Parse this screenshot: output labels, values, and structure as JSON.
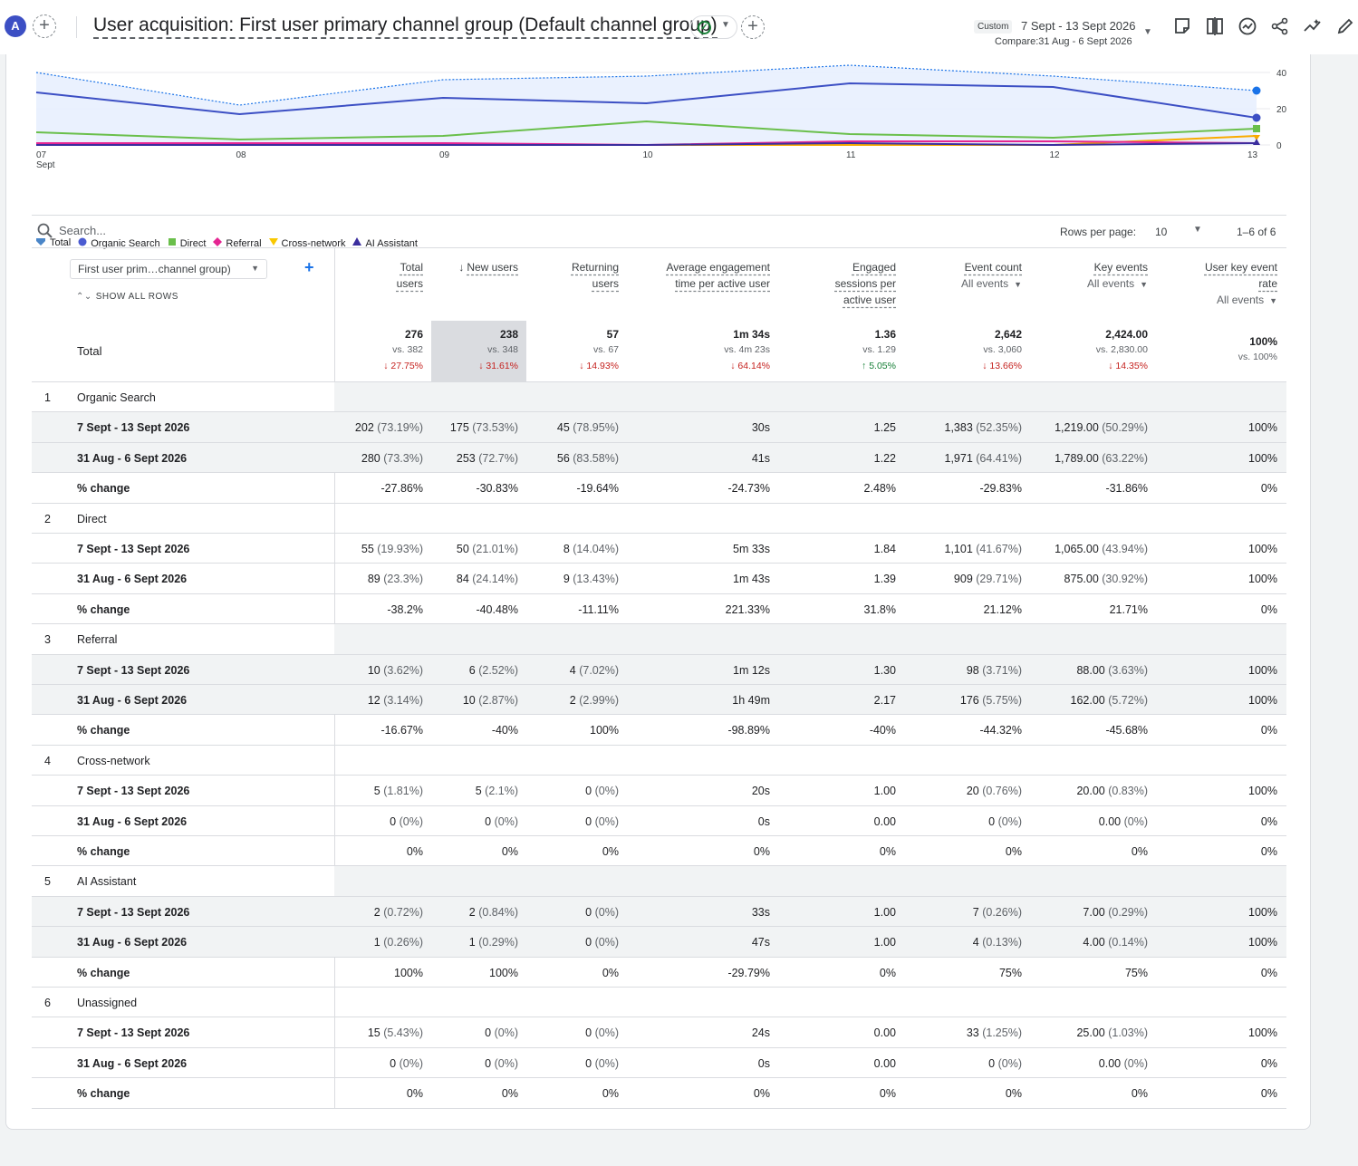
{
  "header": {
    "avatar": "A",
    "add_comparison": "+",
    "title": "User acquisition: First user primary channel group (Default channel group)",
    "add_report": "+",
    "custom_chip": "Custom",
    "date_range": "7 Sept - 13 Sept 2026",
    "compare_range": "Compare:31 Aug - 6 Sept 2026",
    "tools": [
      "annotation-icon",
      "compare-icon",
      "insights-icon",
      "share-icon",
      "trend-icon",
      "edit-icon"
    ]
  },
  "chart": {
    "x_labels": [
      "07",
      "08",
      "09",
      "10",
      "11",
      "12",
      "13"
    ],
    "x_sub": "Sept",
    "y_ticks": [
      "40",
      "20",
      "0"
    ],
    "series": {
      "total_prev": [
        40,
        22,
        36,
        38,
        44,
        38,
        30
      ],
      "organic": [
        29,
        17,
        26,
        23,
        34,
        32,
        15
      ],
      "direct": [
        7,
        3,
        5,
        13,
        6,
        4,
        9
      ],
      "referral": [
        1,
        1,
        1,
        0,
        2,
        2,
        1
      ],
      "cross": [
        0,
        0,
        0,
        0,
        0,
        0,
        5
      ],
      "ai": [
        0,
        0,
        0,
        0,
        1,
        0,
        1
      ]
    },
    "colors": {
      "total": "#1a73e8",
      "organic": "#3c4fc4",
      "direct": "#6abf4b",
      "referral": "#e52592",
      "cross": "#f9ab00",
      "ai": "#3b2e9e"
    }
  },
  "legend": [
    {
      "label": "Total",
      "color": "#4a86c8",
      "shape": "pin"
    },
    {
      "label": "Organic Search",
      "color": "#4a5bd1",
      "shape": "circle"
    },
    {
      "label": "Direct",
      "color": "#6abf4b",
      "shape": "square"
    },
    {
      "label": "Referral",
      "color": "#e52592",
      "shape": "diamond"
    },
    {
      "label": "Cross-network",
      "color": "#f9c800",
      "shape": "tri-down"
    },
    {
      "label": "AI Assistant",
      "color": "#3b2e9e",
      "shape": "tri-up"
    }
  ],
  "toolbar": {
    "search_placeholder": "Search...",
    "rows_per_page_label": "Rows per page:",
    "rows_per_page": "10",
    "pager": "1–6 of 6"
  },
  "table": {
    "dimension": "First user prim…channel group)",
    "show_all_rows": "SHOW ALL ROWS",
    "columns": [
      {
        "l1": "Total",
        "l2": "users"
      },
      {
        "l1": "New users",
        "l2": "",
        "sorted": true
      },
      {
        "l1": "Returning",
        "l2": "users"
      },
      {
        "l1": "Average engagement",
        "l2": "time per active user"
      },
      {
        "l1": "Engaged",
        "l2": "sessions per",
        "l3": "active user"
      },
      {
        "l1": "Event count",
        "sub": "All events"
      },
      {
        "l1": "Key events",
        "sub": "All events"
      },
      {
        "l1": "User key event",
        "l2": "rate",
        "sub": "All events"
      }
    ],
    "total": {
      "label": "Total",
      "cells": [
        {
          "v": "276",
          "vs": "vs. 382",
          "ch": "↓ 27.75%",
          "dir": "down"
        },
        {
          "v": "238",
          "vs": "vs. 348",
          "ch": "↓ 31.61%",
          "dir": "down"
        },
        {
          "v": "57",
          "vs": "vs. 67",
          "ch": "↓ 14.93%",
          "dir": "down"
        },
        {
          "v": "1m 34s",
          "vs": "vs. 4m 23s",
          "ch": "↓ 64.14%",
          "dir": "down"
        },
        {
          "v": "1.36",
          "vs": "vs. 1.29",
          "ch": "↑ 5.05%",
          "dir": "up"
        },
        {
          "v": "2,642",
          "vs": "vs. 3,060",
          "ch": "↓ 13.66%",
          "dir": "down"
        },
        {
          "v": "2,424.00",
          "vs": "vs. 2,830.00",
          "ch": "↓ 14.35%",
          "dir": "down"
        },
        {
          "v": "100%",
          "vs": "vs. 100%",
          "ch": "",
          "dir": ""
        }
      ]
    },
    "groups": [
      {
        "idx": "1",
        "name": "Organic Search",
        "rows": [
          {
            "label": "7 Sept - 13 Sept 2026",
            "cells": [
              [
                "202",
                "(73.19%)"
              ],
              [
                "175",
                "(73.53%)"
              ],
              [
                "45",
                "(78.95%)"
              ],
              [
                "30s",
                ""
              ],
              [
                "1.25",
                ""
              ],
              [
                "1,383",
                "(52.35%)"
              ],
              [
                "1,219.00",
                "(50.29%)"
              ],
              [
                "100%",
                ""
              ]
            ]
          },
          {
            "label": "31 Aug - 6 Sept 2026",
            "cells": [
              [
                "280",
                "(73.3%)"
              ],
              [
                "253",
                "(72.7%)"
              ],
              [
                "56",
                "(83.58%)"
              ],
              [
                "41s",
                ""
              ],
              [
                "1.22",
                ""
              ],
              [
                "1,971",
                "(64.41%)"
              ],
              [
                "1,789.00",
                "(63.22%)"
              ],
              [
                "100%",
                ""
              ]
            ]
          },
          {
            "label": "% change",
            "cells": [
              [
                "-27.86%",
                ""
              ],
              [
                "-30.83%",
                ""
              ],
              [
                "-19.64%",
                ""
              ],
              [
                "-24.73%",
                ""
              ],
              [
                "2.48%",
                ""
              ],
              [
                "-29.83%",
                ""
              ],
              [
                "-31.86%",
                ""
              ],
              [
                "0%",
                ""
              ]
            ]
          }
        ]
      },
      {
        "idx": "2",
        "name": "Direct",
        "rows": [
          {
            "label": "7 Sept - 13 Sept 2026",
            "cells": [
              [
                "55",
                "(19.93%)"
              ],
              [
                "50",
                "(21.01%)"
              ],
              [
                "8",
                "(14.04%)"
              ],
              [
                "5m 33s",
                ""
              ],
              [
                "1.84",
                ""
              ],
              [
                "1,101",
                "(41.67%)"
              ],
              [
                "1,065.00",
                "(43.94%)"
              ],
              [
                "100%",
                ""
              ]
            ]
          },
          {
            "label": "31 Aug - 6 Sept 2026",
            "cells": [
              [
                "89",
                "(23.3%)"
              ],
              [
                "84",
                "(24.14%)"
              ],
              [
                "9",
                "(13.43%)"
              ],
              [
                "1m 43s",
                ""
              ],
              [
                "1.39",
                ""
              ],
              [
                "909",
                "(29.71%)"
              ],
              [
                "875.00",
                "(30.92%)"
              ],
              [
                "100%",
                ""
              ]
            ]
          },
          {
            "label": "% change",
            "cells": [
              [
                "-38.2%",
                ""
              ],
              [
                "-40.48%",
                ""
              ],
              [
                "-11.11%",
                ""
              ],
              [
                "221.33%",
                ""
              ],
              [
                "31.8%",
                ""
              ],
              [
                "21.12%",
                ""
              ],
              [
                "21.71%",
                ""
              ],
              [
                "0%",
                ""
              ]
            ]
          }
        ]
      },
      {
        "idx": "3",
        "name": "Referral",
        "rows": [
          {
            "label": "7 Sept - 13 Sept 2026",
            "cells": [
              [
                "10",
                "(3.62%)"
              ],
              [
                "6",
                "(2.52%)"
              ],
              [
                "4",
                "(7.02%)"
              ],
              [
                "1m 12s",
                ""
              ],
              [
                "1.30",
                ""
              ],
              [
                "98",
                "(3.71%)"
              ],
              [
                "88.00",
                "(3.63%)"
              ],
              [
                "100%",
                ""
              ]
            ]
          },
          {
            "label": "31 Aug - 6 Sept 2026",
            "cells": [
              [
                "12",
                "(3.14%)"
              ],
              [
                "10",
                "(2.87%)"
              ],
              [
                "2",
                "(2.99%)"
              ],
              [
                "1h 49m",
                ""
              ],
              [
                "2.17",
                ""
              ],
              [
                "176",
                "(5.75%)"
              ],
              [
                "162.00",
                "(5.72%)"
              ],
              [
                "100%",
                ""
              ]
            ]
          },
          {
            "label": "% change",
            "cells": [
              [
                "-16.67%",
                ""
              ],
              [
                "-40%",
                ""
              ],
              [
                "100%",
                ""
              ],
              [
                "-98.89%",
                ""
              ],
              [
                "-40%",
                ""
              ],
              [
                "-44.32%",
                ""
              ],
              [
                "-45.68%",
                ""
              ],
              [
                "0%",
                ""
              ]
            ]
          }
        ]
      },
      {
        "idx": "4",
        "name": "Cross-network",
        "rows": [
          {
            "label": "7 Sept - 13 Sept 2026",
            "cells": [
              [
                "5",
                "(1.81%)"
              ],
              [
                "5",
                "(2.1%)"
              ],
              [
                "0",
                "(0%)"
              ],
              [
                "20s",
                ""
              ],
              [
                "1.00",
                ""
              ],
              [
                "20",
                "(0.76%)"
              ],
              [
                "20.00",
                "(0.83%)"
              ],
              [
                "100%",
                ""
              ]
            ]
          },
          {
            "label": "31 Aug - 6 Sept 2026",
            "cells": [
              [
                "0",
                "(0%)"
              ],
              [
                "0",
                "(0%)"
              ],
              [
                "0",
                "(0%)"
              ],
              [
                "0s",
                ""
              ],
              [
                "0.00",
                ""
              ],
              [
                "0",
                "(0%)"
              ],
              [
                "0.00",
                "(0%)"
              ],
              [
                "0%",
                ""
              ]
            ]
          },
          {
            "label": "% change",
            "cells": [
              [
                "0%",
                ""
              ],
              [
                "0%",
                ""
              ],
              [
                "0%",
                ""
              ],
              [
                "0%",
                ""
              ],
              [
                "0%",
                ""
              ],
              [
                "0%",
                ""
              ],
              [
                "0%",
                ""
              ],
              [
                "0%",
                ""
              ]
            ]
          }
        ]
      },
      {
        "idx": "5",
        "name": "AI Assistant",
        "rows": [
          {
            "label": "7 Sept - 13 Sept 2026",
            "cells": [
              [
                "2",
                "(0.72%)"
              ],
              [
                "2",
                "(0.84%)"
              ],
              [
                "0",
                "(0%)"
              ],
              [
                "33s",
                ""
              ],
              [
                "1.00",
                ""
              ],
              [
                "7",
                "(0.26%)"
              ],
              [
                "7.00",
                "(0.29%)"
              ],
              [
                "100%",
                ""
              ]
            ]
          },
          {
            "label": "31 Aug - 6 Sept 2026",
            "cells": [
              [
                "1",
                "(0.26%)"
              ],
              [
                "1",
                "(0.29%)"
              ],
              [
                "0",
                "(0%)"
              ],
              [
                "47s",
                ""
              ],
              [
                "1.00",
                ""
              ],
              [
                "4",
                "(0.13%)"
              ],
              [
                "4.00",
                "(0.14%)"
              ],
              [
                "100%",
                ""
              ]
            ]
          },
          {
            "label": "% change",
            "cells": [
              [
                "100%",
                ""
              ],
              [
                "100%",
                ""
              ],
              [
                "0%",
                ""
              ],
              [
                "-29.79%",
                ""
              ],
              [
                "0%",
                ""
              ],
              [
                "75%",
                ""
              ],
              [
                "75%",
                ""
              ],
              [
                "0%",
                ""
              ]
            ]
          }
        ]
      },
      {
        "idx": "6",
        "name": "Unassigned",
        "rows": [
          {
            "label": "7 Sept - 13 Sept 2026",
            "cells": [
              [
                "15",
                "(5.43%)"
              ],
              [
                "0",
                "(0%)"
              ],
              [
                "0",
                "(0%)"
              ],
              [
                "24s",
                ""
              ],
              [
                "0.00",
                ""
              ],
              [
                "33",
                "(1.25%)"
              ],
              [
                "25.00",
                "(1.03%)"
              ],
              [
                "100%",
                ""
              ]
            ]
          },
          {
            "label": "31 Aug - 6 Sept 2026",
            "cells": [
              [
                "0",
                "(0%)"
              ],
              [
                "0",
                "(0%)"
              ],
              [
                "0",
                "(0%)"
              ],
              [
                "0s",
                ""
              ],
              [
                "0.00",
                ""
              ],
              [
                "0",
                "(0%)"
              ],
              [
                "0.00",
                "(0%)"
              ],
              [
                "0%",
                ""
              ]
            ]
          },
          {
            "label": "% change",
            "cells": [
              [
                "0%",
                ""
              ],
              [
                "0%",
                ""
              ],
              [
                "0%",
                ""
              ],
              [
                "0%",
                ""
              ],
              [
                "0%",
                ""
              ],
              [
                "0%",
                ""
              ],
              [
                "0%",
                ""
              ],
              [
                "0%",
                ""
              ]
            ]
          }
        ]
      }
    ]
  }
}
